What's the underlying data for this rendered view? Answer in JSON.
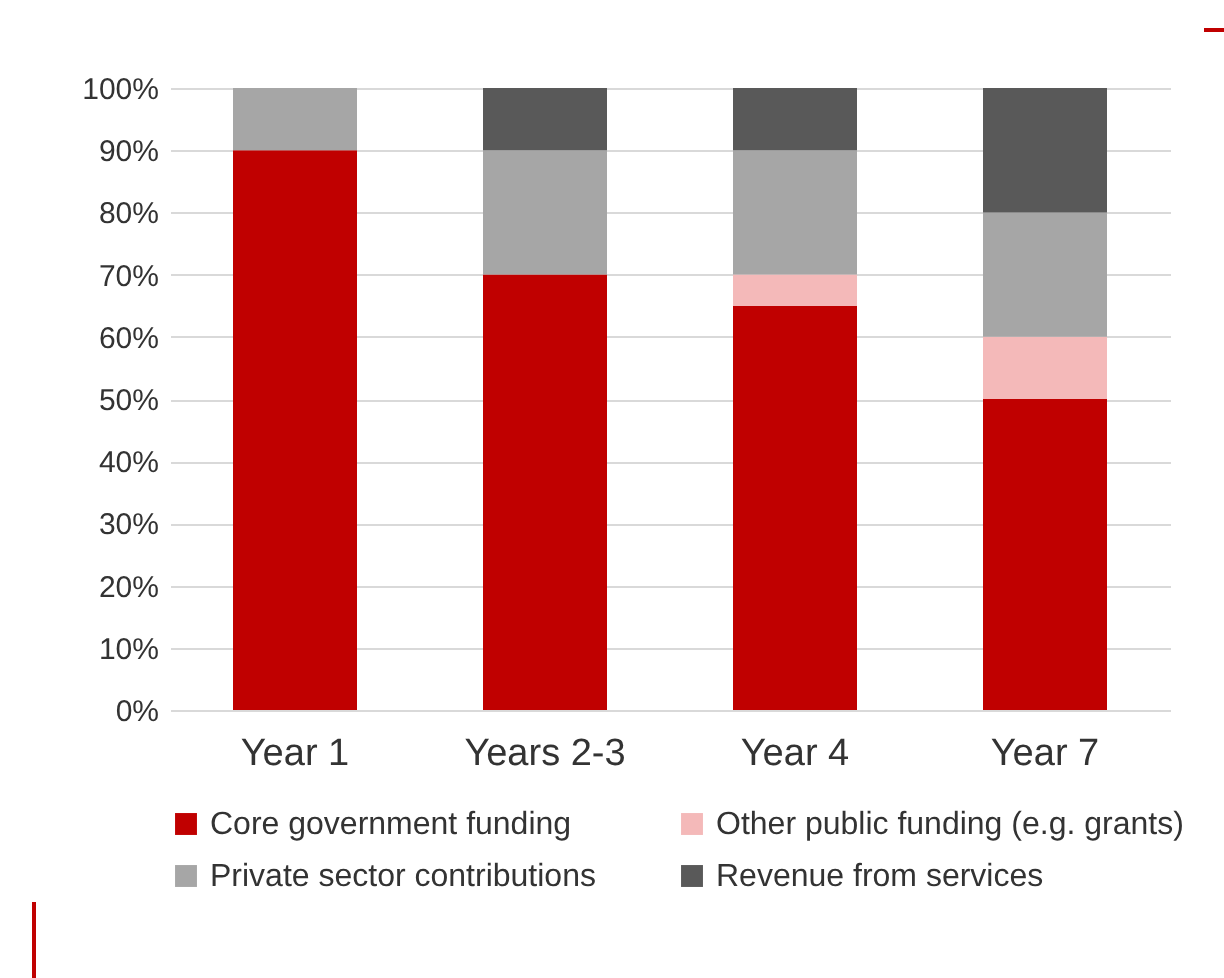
{
  "chart_data": {
    "type": "bar",
    "stacked": true,
    "categories": [
      "Year 1",
      "Years 2-3",
      "Year 4",
      "Year 7"
    ],
    "series": [
      {
        "name": "Core government funding",
        "color": "#c00000",
        "values": [
          90,
          70,
          65,
          50
        ]
      },
      {
        "name": "Other public funding (e.g. grants)",
        "color": "#f4b9b9",
        "values": [
          0,
          0,
          5,
          10
        ]
      },
      {
        "name": "Private sector contributions",
        "color": "#a6a6a6",
        "values": [
          10,
          20,
          20,
          20
        ]
      },
      {
        "name": "Revenue from services",
        "color": "#595959",
        "values": [
          0,
          10,
          10,
          20
        ]
      }
    ],
    "ylim": [
      0,
      100
    ],
    "yticks": [
      {
        "value": 0,
        "label": "0%"
      },
      {
        "value": 10,
        "label": "10%"
      },
      {
        "value": 20,
        "label": "20%"
      },
      {
        "value": 30,
        "label": "30%"
      },
      {
        "value": 40,
        "label": "40%"
      },
      {
        "value": 50,
        "label": "50%"
      },
      {
        "value": 60,
        "label": "60%"
      },
      {
        "value": 70,
        "label": "70%"
      },
      {
        "value": 80,
        "label": "80%"
      },
      {
        "value": 90,
        "label": "90%"
      },
      {
        "value": 100,
        "label": "100%"
      }
    ],
    "grid": "y",
    "legend": "bottom"
  }
}
